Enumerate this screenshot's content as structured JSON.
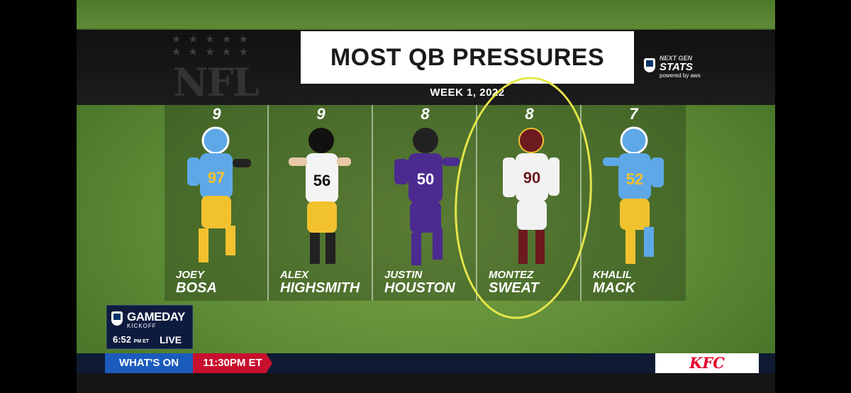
{
  "graphic": {
    "title": "MOST QB PRESSURES",
    "subtitle": "WEEK 1, 2022",
    "sponsor_top": "NEXT GEN",
    "sponsor_main": "STATS",
    "sponsor_sub": "powered by aws",
    "shield_text": "NFL"
  },
  "players": [
    {
      "pressures": "9",
      "first": "JOEY",
      "last": "BOSA",
      "jersey": "97",
      "team_colors": {
        "primary": "#5fa8e8",
        "secondary": "#f2c12e",
        "helmet": "#5fa8e8"
      }
    },
    {
      "pressures": "9",
      "first": "ALEX",
      "last": "HIGHSMITH",
      "jersey": "56",
      "team_colors": {
        "primary": "#f4f4f4",
        "secondary": "#f2c12e",
        "helmet": "#111111"
      }
    },
    {
      "pressures": "8",
      "first": "JUSTIN",
      "last": "HOUSTON",
      "jersey": "50",
      "team_colors": {
        "primary": "#4b2b8f",
        "secondary": "#4b2b8f",
        "helmet": "#222222"
      }
    },
    {
      "pressures": "8",
      "first": "MONTEZ",
      "last": "SWEAT",
      "jersey": "90",
      "team_colors": {
        "primary": "#f2f2f2",
        "secondary": "#f2f2f2",
        "helmet": "#6d1a1f"
      }
    },
    {
      "pressures": "7",
      "first": "KHALIL",
      "last": "MACK",
      "jersey": "52",
      "team_colors": {
        "primary": "#5fa8e8",
        "secondary": "#f2c12e",
        "helmet": "#5fa8e8"
      }
    }
  ],
  "scorebug": {
    "show_title": "GAMEDAY",
    "show_sub": "KICKOFF",
    "time": "6:52",
    "time_zone": "PM ET",
    "status": "LIVE"
  },
  "ticker": {
    "whats_on": "WHAT'S ON",
    "airtime": "11:30PM ET",
    "sponsor": "KFC"
  },
  "colors": {
    "highlight": "#e6e64a",
    "whats_on_bg": "#1b5bbd",
    "airtime_bg": "#c8102e",
    "kfc_red": "#e4002b"
  }
}
